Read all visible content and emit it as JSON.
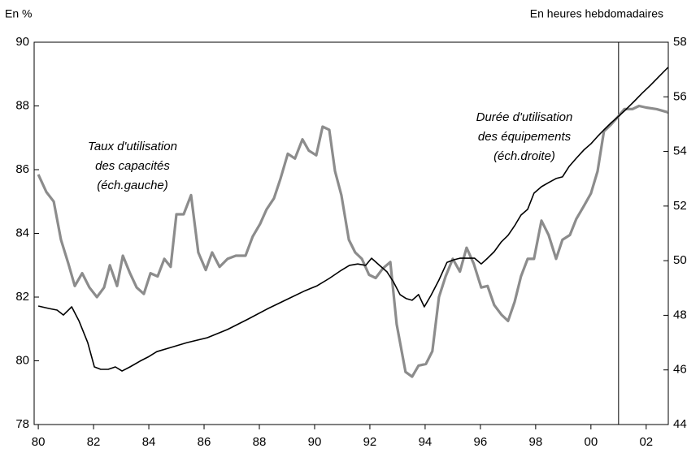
{
  "chart_data": {
    "type": "line",
    "y_label": "En %",
    "y2_label": "En heures hebdomadaires",
    "xlim": [
      1979.85,
      2002.8
    ],
    "xticks": [
      {
        "value": 1980,
        "label": "80"
      },
      {
        "value": 1982,
        "label": "82"
      },
      {
        "value": 1984,
        "label": "84"
      },
      {
        "value": 1986,
        "label": "86"
      },
      {
        "value": 1988,
        "label": "88"
      },
      {
        "value": 1990,
        "label": "90"
      },
      {
        "value": 1992,
        "label": "92"
      },
      {
        "value": 1994,
        "label": "94"
      },
      {
        "value": 1996,
        "label": "96"
      },
      {
        "value": 1998,
        "label": "98"
      },
      {
        "value": 2000,
        "label": "00"
      },
      {
        "value": 2002,
        "label": "02"
      }
    ],
    "ylim": [
      78,
      90
    ],
    "yticks": [
      78,
      80,
      82,
      84,
      86,
      88,
      90
    ],
    "y2lim": [
      44,
      58
    ],
    "y2ticks": [
      44,
      46,
      48,
      50,
      52,
      54,
      56,
      58
    ],
    "vertical_line": 2001,
    "annotations": [
      {
        "lines": [
          "Taux d'utilisation",
          "des capacités",
          "(éch.gauche)"
        ]
      },
      {
        "lines": [
          "Durée d'utilisation",
          "des équipements",
          "(éch.droite)"
        ]
      }
    ],
    "series": [
      {
        "name": "Taux d'utilisation des capacités",
        "color": "#8c8c8c",
        "axis": "y",
        "x": [
          1980.0,
          1980.29,
          1980.56,
          1980.82,
          1981.09,
          1981.32,
          1981.59,
          1981.85,
          1982.12,
          1982.38,
          1982.59,
          1982.85,
          1983.06,
          1983.32,
          1983.56,
          1983.82,
          1984.06,
          1984.32,
          1984.56,
          1984.79,
          1985.0,
          1985.26,
          1985.53,
          1985.79,
          1986.06,
          1986.29,
          1986.56,
          1986.85,
          1987.15,
          1987.5,
          1987.76,
          1988.03,
          1988.26,
          1988.53,
          1988.76,
          1989.03,
          1989.29,
          1989.56,
          1989.79,
          1990.06,
          1990.29,
          1990.53,
          1990.74,
          1990.97,
          1991.24,
          1991.47,
          1991.71,
          1991.97,
          1992.21,
          1992.47,
          1992.74,
          1992.97,
          1993.29,
          1993.53,
          1993.76,
          1994.03,
          1994.26,
          1994.5,
          1994.74,
          1995.0,
          1995.26,
          1995.5,
          1995.76,
          1996.03,
          1996.26,
          1996.5,
          1996.76,
          1997.0,
          1997.24,
          1997.47,
          1997.71,
          1997.94,
          1998.21,
          1998.47,
          1998.74,
          1998.97,
          1999.24,
          1999.47,
          1999.74,
          2000.0,
          2000.24,
          2000.47,
          2000.71,
          2000.97,
          2001.21,
          2001.5,
          2001.74,
          2002.0,
          2002.38,
          2002.79
        ],
        "values": [
          85.85,
          85.3,
          85.0,
          83.8,
          83.05,
          82.35,
          82.75,
          82.3,
          82.0,
          82.3,
          83.0,
          82.35,
          83.3,
          82.75,
          82.3,
          82.1,
          82.75,
          82.65,
          83.2,
          82.95,
          84.6,
          84.6,
          85.2,
          83.4,
          82.85,
          83.4,
          82.95,
          83.2,
          83.3,
          83.3,
          83.9,
          84.3,
          84.75,
          85.1,
          85.7,
          86.5,
          86.35,
          86.95,
          86.6,
          86.45,
          87.35,
          87.25,
          85.95,
          85.2,
          83.8,
          83.4,
          83.2,
          82.7,
          82.6,
          82.9,
          83.1,
          81.15,
          79.65,
          79.5,
          79.85,
          79.9,
          80.3,
          82.0,
          82.65,
          83.2,
          82.8,
          83.55,
          83.05,
          82.3,
          82.35,
          81.75,
          81.45,
          81.25,
          81.85,
          82.65,
          83.2,
          83.2,
          84.4,
          83.95,
          83.2,
          83.8,
          83.95,
          84.45,
          84.85,
          85.25,
          85.95,
          87.2,
          87.4,
          87.65,
          87.9,
          87.9,
          88.0,
          87.95,
          87.9,
          87.8
        ]
      },
      {
        "name": "Durée d'utilisation des équipements",
        "color": "#000000",
        "axis": "y2",
        "x": [
          1980.0,
          1980.38,
          1980.68,
          1980.91,
          1981.21,
          1981.47,
          1981.79,
          1982.03,
          1982.26,
          1982.53,
          1982.79,
          1983.03,
          1983.32,
          1983.68,
          1983.97,
          1984.29,
          1984.79,
          1985.38,
          1986.12,
          1986.85,
          1987.59,
          1988.32,
          1989.06,
          1989.65,
          1990.09,
          1990.53,
          1990.97,
          1991.26,
          1991.56,
          1991.85,
          1992.06,
          1992.35,
          1992.62,
          1992.85,
          1993.09,
          1993.32,
          1993.53,
          1993.76,
          1993.97,
          1994.21,
          1994.5,
          1994.79,
          1995.03,
          1995.26,
          1995.53,
          1995.79,
          1996.03,
          1996.26,
          1996.5,
          1996.76,
          1997.0,
          1997.24,
          1997.47,
          1997.71,
          1997.94,
          1998.21,
          1998.47,
          1998.74,
          1998.97,
          1999.21,
          1999.47,
          1999.74,
          2000.0,
          2000.24,
          2000.47,
          2000.71,
          2000.97,
          2001.26,
          2001.56,
          2001.85,
          2002.15,
          2002.44,
          2002.79
        ],
        "values": [
          48.34,
          48.25,
          48.19,
          48.01,
          48.31,
          47.8,
          47.0,
          46.11,
          46.02,
          46.02,
          46.11,
          45.96,
          46.11,
          46.32,
          46.47,
          46.67,
          46.82,
          47.0,
          47.18,
          47.48,
          47.86,
          48.25,
          48.61,
          48.9,
          49.08,
          49.35,
          49.65,
          49.83,
          49.88,
          49.83,
          50.09,
          49.83,
          49.59,
          49.23,
          48.76,
          48.61,
          48.55,
          48.76,
          48.31,
          48.73,
          49.29,
          49.94,
          50.03,
          50.09,
          50.09,
          50.09,
          49.88,
          50.09,
          50.33,
          50.69,
          50.93,
          51.28,
          51.67,
          51.88,
          52.47,
          52.71,
          52.86,
          53.01,
          53.07,
          53.45,
          53.75,
          54.05,
          54.28,
          54.55,
          54.79,
          55.03,
          55.26,
          55.53,
          55.83,
          56.13,
          56.42,
          56.72,
          57.08
        ]
      }
    ]
  }
}
